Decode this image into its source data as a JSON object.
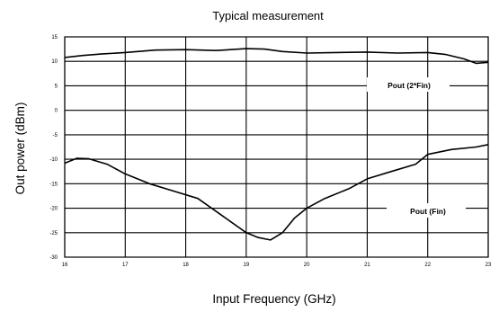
{
  "chart_data": {
    "type": "line",
    "title": "Typical measurement",
    "xlabel": "Input Frequency (GHz)",
    "ylabel": "Out power (dBm)",
    "xlim": [
      16,
      23
    ],
    "ylim": [
      -30,
      15
    ],
    "x_ticks": [
      16,
      17,
      18,
      19,
      20,
      21,
      22,
      23
    ],
    "y_ticks": [
      -30,
      -25,
      -20,
      -15,
      -10,
      -5,
      0,
      5,
      10,
      15
    ],
    "grid": true,
    "series": [
      {
        "name": "Pout (2*Fin)",
        "color": "#000000",
        "x": [
          16,
          16.3,
          16.6,
          17,
          17.5,
          18,
          18.5,
          19,
          19.3,
          19.6,
          20,
          20.5,
          21,
          21.5,
          22,
          22.3,
          22.6,
          22.8,
          23
        ],
        "y": [
          10.8,
          11.2,
          11.5,
          11.8,
          12.3,
          12.4,
          12.2,
          12.6,
          12.5,
          12,
          11.7,
          11.8,
          11.9,
          11.7,
          11.8,
          11.4,
          10.5,
          9.6,
          9.8
        ]
      },
      {
        "name": "Pout (Fin)",
        "color": "#000000",
        "x": [
          16,
          16.2,
          16.4,
          16.7,
          17,
          17.4,
          17.8,
          18.2,
          18.6,
          19,
          19.2,
          19.4,
          19.6,
          19.8,
          20,
          20.3,
          20.7,
          21,
          21.4,
          21.8,
          22,
          22.4,
          22.8,
          23
        ],
        "y": [
          -10.8,
          -9.8,
          -9.9,
          -11,
          -13,
          -15,
          -16.5,
          -18,
          -21.5,
          -25,
          -26,
          -26.5,
          -25,
          -22,
          -20,
          -18,
          -16,
          -14,
          -12.5,
          -11,
          -9,
          -8,
          -7.5,
          -7
        ]
      }
    ]
  }
}
